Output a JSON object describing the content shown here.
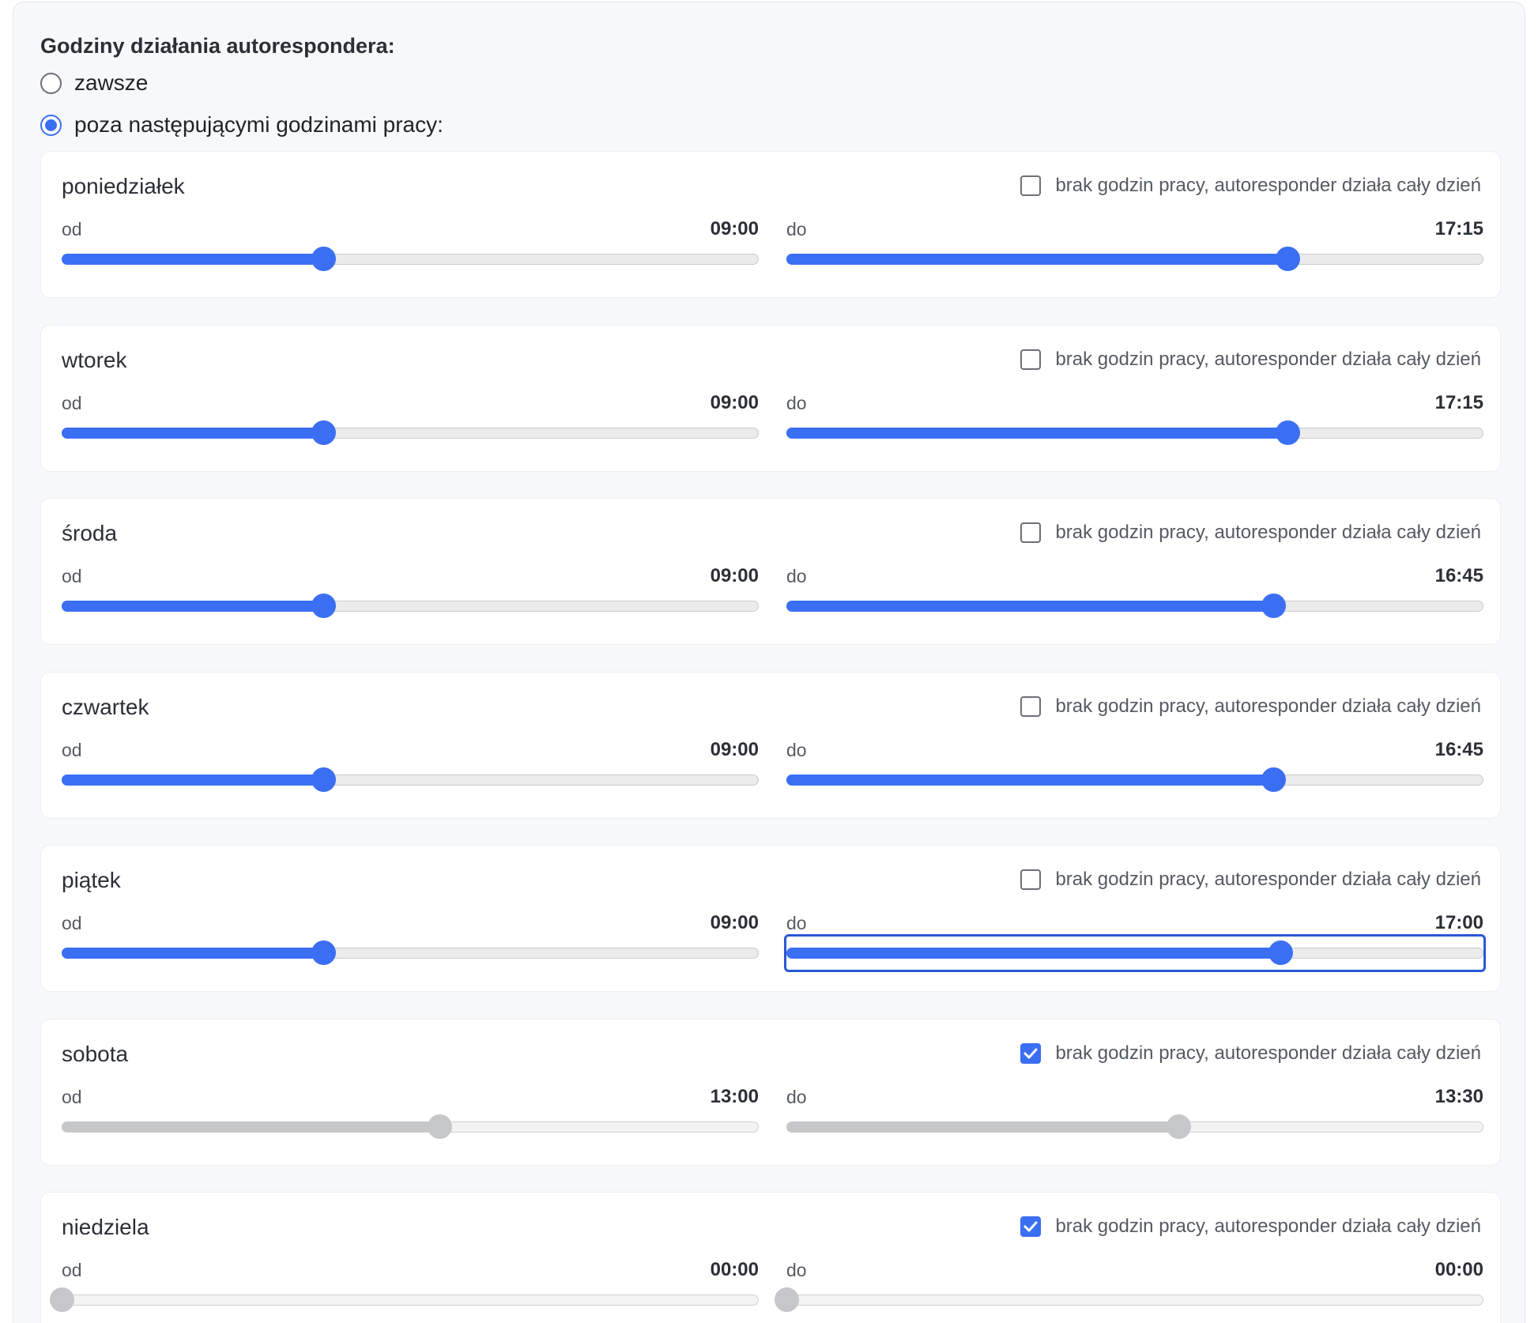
{
  "section_title": "Godziny działania autorespondera:",
  "mode_options": [
    {
      "label": "zawsze",
      "checked": false
    },
    {
      "label": "poza następującymi godzinami pracy:",
      "checked": true
    }
  ],
  "allday_label": "brak godzin pracy, autoresponder działa cały dzień",
  "from_label": "od",
  "to_label": "do",
  "accent_color": "#3b6ff3",
  "days": [
    {
      "name": "poniedziałek",
      "all_day": false,
      "from": "09:00",
      "to": "17:15"
    },
    {
      "name": "wtorek",
      "all_day": false,
      "from": "09:00",
      "to": "17:15"
    },
    {
      "name": "środa",
      "all_day": false,
      "from": "09:00",
      "to": "16:45"
    },
    {
      "name": "czwartek",
      "all_day": false,
      "from": "09:00",
      "to": "16:45"
    },
    {
      "name": "piątek",
      "all_day": false,
      "from": "09:00",
      "to": "17:00",
      "to_focused": true
    },
    {
      "name": "sobota",
      "all_day": true,
      "from": "13:00",
      "to": "13:30"
    },
    {
      "name": "niedziela",
      "all_day": true,
      "from": "00:00",
      "to": "00:00"
    }
  ]
}
